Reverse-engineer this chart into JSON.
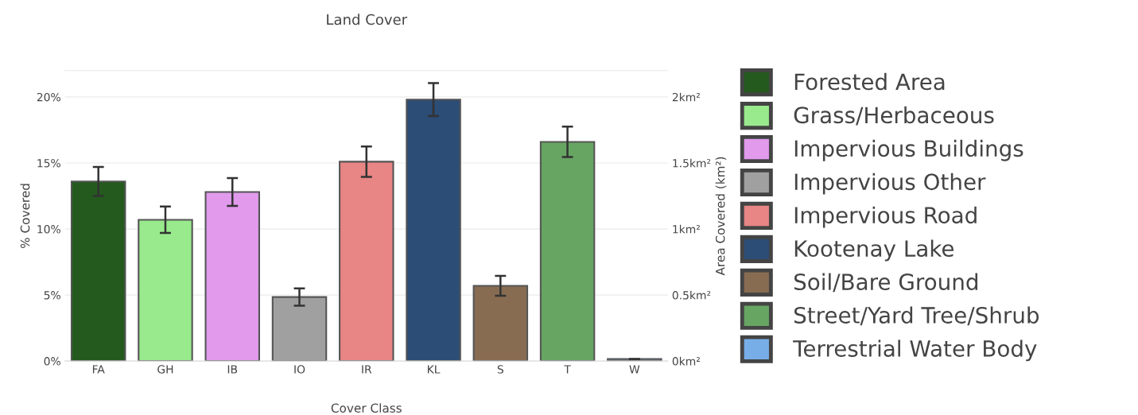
{
  "chart_data": {
    "type": "bar",
    "title": "Land Cover",
    "xlabel": "Cover Class",
    "ylabel": "% Covered",
    "y2label": "Area Covered (km²)",
    "categories": [
      "FA",
      "GH",
      "IB",
      "IO",
      "IR",
      "KL",
      "S",
      "T",
      "W"
    ],
    "series": [
      {
        "name": "Forested Area",
        "color": "#245a1e",
        "values": [
          13.6,
          null,
          null,
          null,
          null,
          null,
          null,
          null,
          null
        ],
        "errors": [
          1.1,
          null,
          null,
          null,
          null,
          null,
          null,
          null,
          null
        ]
      },
      {
        "name": "Grass/Herbaceous",
        "color": "#98ea8c",
        "values": [
          null,
          10.7,
          null,
          null,
          null,
          null,
          null,
          null,
          null
        ],
        "errors": [
          null,
          1.0,
          null,
          null,
          null,
          null,
          null,
          null,
          null
        ]
      },
      {
        "name": "Impervious Buildings",
        "color": "#e19aec",
        "values": [
          null,
          null,
          12.8,
          null,
          null,
          null,
          null,
          null,
          null
        ],
        "errors": [
          null,
          null,
          1.05,
          null,
          null,
          null,
          null,
          null,
          null
        ]
      },
      {
        "name": "Impervious Other",
        "color": "#a0a0a0",
        "values": [
          null,
          null,
          null,
          4.85,
          null,
          null,
          null,
          null,
          null
        ],
        "errors": [
          null,
          null,
          null,
          0.65,
          null,
          null,
          null,
          null,
          null
        ]
      },
      {
        "name": "Impervious Road",
        "color": "#e88585",
        "values": [
          null,
          null,
          null,
          null,
          15.1,
          null,
          null,
          null,
          null
        ],
        "errors": [
          null,
          null,
          null,
          null,
          1.15,
          null,
          null,
          null,
          null
        ]
      },
      {
        "name": "Kootenay Lake",
        "color": "#2c4d75",
        "values": [
          null,
          null,
          null,
          null,
          null,
          19.8,
          null,
          null,
          null
        ],
        "errors": [
          null,
          null,
          null,
          null,
          null,
          1.25,
          null,
          null,
          null
        ]
      },
      {
        "name": "Soil/Bare Ground",
        "color": "#886c52",
        "values": [
          null,
          null,
          null,
          null,
          null,
          null,
          5.7,
          null,
          null
        ],
        "errors": [
          null,
          null,
          null,
          null,
          null,
          null,
          0.75,
          null,
          null
        ]
      },
      {
        "name": "Street/Yard Tree/Shrub",
        "color": "#67a563",
        "values": [
          null,
          null,
          null,
          null,
          null,
          null,
          null,
          16.6,
          null
        ],
        "errors": [
          null,
          null,
          null,
          null,
          null,
          null,
          null,
          1.15,
          null
        ]
      },
      {
        "name": "Terrestrial Water Body",
        "color": "#78aee8",
        "values": [
          null,
          null,
          null,
          null,
          null,
          null,
          null,
          null,
          0.15
        ],
        "errors": [
          null,
          null,
          null,
          null,
          null,
          null,
          null,
          null,
          null
        ]
      }
    ],
    "ylim": [
      0,
      22
    ],
    "yticks": [
      {
        "value": 0,
        "label": "0%"
      },
      {
        "value": 5,
        "label": "5%"
      },
      {
        "value": 10,
        "label": "10%"
      },
      {
        "value": 15,
        "label": "15%"
      },
      {
        "value": 20,
        "label": "20%"
      }
    ],
    "y2lim": [
      0,
      2.2
    ],
    "y2ticks": [
      {
        "value": 0,
        "label": "0km²"
      },
      {
        "value": 0.5,
        "label": "0.5km²"
      },
      {
        "value": 1,
        "label": "1km²"
      },
      {
        "value": 1.5,
        "label": "1.5km²"
      },
      {
        "value": 2,
        "label": "2km²"
      }
    ],
    "grid": "y",
    "legend": "right"
  }
}
